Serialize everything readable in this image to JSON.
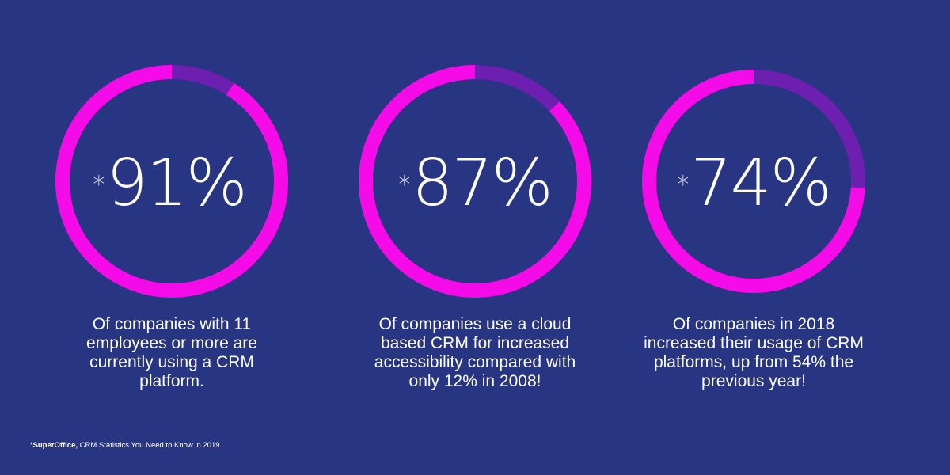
{
  "colors": {
    "background": "#283583",
    "ring_value": "#f50ae8",
    "ring_remainder": "#6d1fb0",
    "text": "#ffffff"
  },
  "chart_data": [
    {
      "type": "pie",
      "categories": [
        "91%",
        ""
      ],
      "values": [
        91,
        9
      ],
      "value_label": "91%",
      "asterisk": "*",
      "caption": "Of companies with 11\nemployees or more are\ncurrently using a CRM\nplatform."
    },
    {
      "type": "pie",
      "categories": [
        "87%",
        ""
      ],
      "values": [
        87,
        13
      ],
      "value_label": "87%",
      "asterisk": "*",
      "caption": "Of companies use a cloud\nbased CRM for increased\naccessibility compared with\nonly 12% in 2008!"
    },
    {
      "type": "pie",
      "categories": [
        "74%",
        ""
      ],
      "values": [
        74,
        26
      ],
      "value_label": "74%",
      "asterisk": "*",
      "caption": "Of companies in 2018\nincreased their usage of CRM\nplatforms, up from 54% the\nprevious year!"
    }
  ],
  "footnote": {
    "asterisk": "*",
    "source": "SuperOffice,",
    "text": " CRM Statistics You Need to Know in 2019"
  }
}
